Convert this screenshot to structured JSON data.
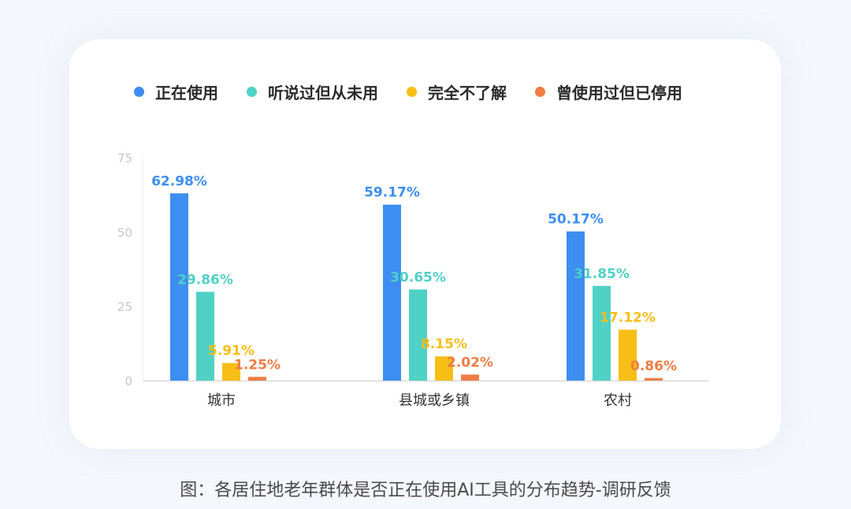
{
  "chart_data": {
    "type": "bar",
    "categories": [
      "城市",
      "县城或乡镇",
      "农村"
    ],
    "series": [
      {
        "name": "正在使用",
        "color": "#3d8ef0",
        "values": [
          62.98,
          59.17,
          50.17
        ],
        "labels": [
          "62.98%",
          "59.17%",
          "50.17%"
        ]
      },
      {
        "name": "听说过但从未用",
        "color": "#4fd1c5",
        "values": [
          29.86,
          30.65,
          31.85
        ],
        "labels": [
          "29.86%",
          "30.65%",
          "31.85%"
        ]
      },
      {
        "name": "完全不了解",
        "color": "#f7be16",
        "values": [
          5.91,
          8.15,
          17.12
        ],
        "labels": [
          "5.91%",
          "8.15%",
          "17.12%"
        ]
      },
      {
        "name": "曾使用过但已停用",
        "color": "#ee7d44",
        "values": [
          1.25,
          2.02,
          0.86
        ],
        "labels": [
          "1.25%",
          "2.02%",
          "0.86%"
        ]
      }
    ],
    "yticks": [
      "0",
      "25",
      "50",
      "75"
    ],
    "ylim": [
      0,
      75
    ],
    "legend_position": "top",
    "grid": false
  },
  "caption": "图：各居住地老年群体是否正在使用AI工具的分布趋势-调研反馈"
}
